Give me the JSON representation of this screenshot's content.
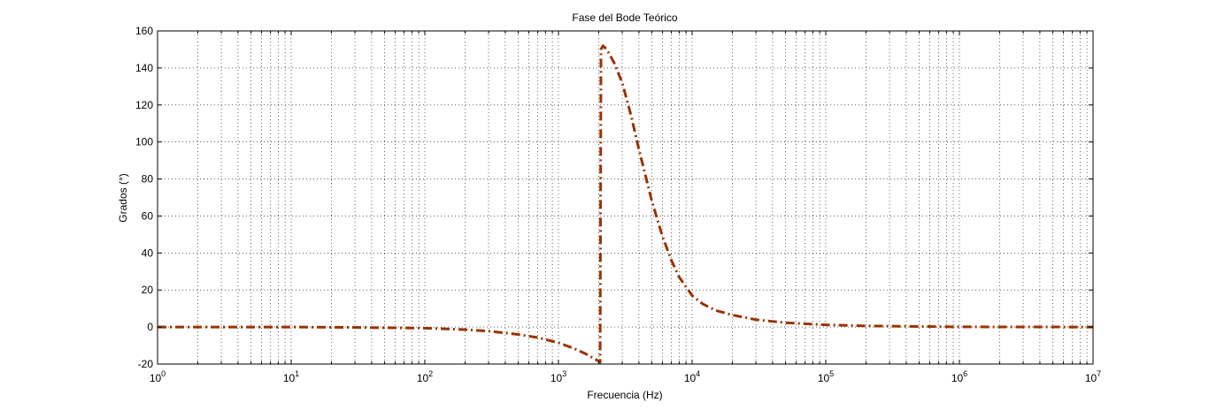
{
  "colors": {
    "background": "#ffffff",
    "axes": "#000000",
    "grid": "#000000",
    "series": "#993300"
  },
  "chart_data": {
    "type": "line",
    "title": "Fase del Bode Teórico",
    "xlabel": "Frecuencia (Hz)",
    "ylabel": "Grados (°)",
    "xscale": "log",
    "xlim": [
      1,
      10000000
    ],
    "ylim": [
      -20,
      160
    ],
    "grid": true,
    "minor_grid": true,
    "legend": "none",
    "x_ticks": [
      {
        "value": 1,
        "base": "10",
        "exp": "0"
      },
      {
        "value": 10,
        "base": "10",
        "exp": "1"
      },
      {
        "value": 100,
        "base": "10",
        "exp": "2"
      },
      {
        "value": 1000,
        "base": "10",
        "exp": "3"
      },
      {
        "value": 10000,
        "base": "10",
        "exp": "4"
      },
      {
        "value": 100000,
        "base": "10",
        "exp": "5"
      },
      {
        "value": 1000000,
        "base": "10",
        "exp": "6"
      },
      {
        "value": 10000000,
        "base": "10",
        "exp": "7"
      }
    ],
    "y_ticks": [
      -20,
      0,
      20,
      40,
      60,
      80,
      100,
      120,
      140,
      160
    ],
    "series": [
      {
        "line_style": "dash-dot",
        "color": "#993300",
        "x": [
          1,
          10,
          30,
          100,
          200,
          300,
          500,
          700,
          1000,
          1300,
          1600,
          1900,
          2050,
          2080,
          2150,
          2300,
          2600,
          3000,
          3500,
          4000,
          5000,
          6000,
          7000,
          8000,
          10000,
          12000,
          15000,
          20000,
          30000,
          50000,
          100000,
          200000,
          1000000,
          10000000
        ],
        "y": [
          0,
          0,
          -0.2,
          -0.6,
          -1.4,
          -2.2,
          -4,
          -5.7,
          -8.5,
          -11.5,
          -14.5,
          -17.5,
          -19,
          150,
          152,
          150,
          143,
          132,
          114,
          96,
          68,
          49,
          36,
          27,
          17,
          12.5,
          9,
          6.5,
          4,
          2.3,
          1.2,
          0.6,
          0.1,
          0
        ]
      }
    ]
  }
}
